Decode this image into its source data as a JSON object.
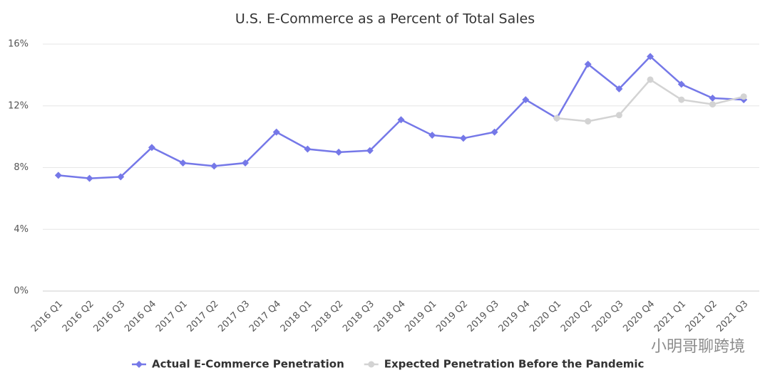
{
  "chart_data": {
    "type": "line",
    "title": "U.S. E-Commerce as a Percent of Total Sales",
    "watermark": "小明哥聊跨境",
    "categories": [
      "2016 Q1",
      "2016 Q2",
      "2016 Q3",
      "2016 Q4",
      "2017 Q1",
      "2017 Q2",
      "2017 Q3",
      "2017 Q4",
      "2018 Q1",
      "2018 Q2",
      "2018 Q3",
      "2018 Q4",
      "2019 Q1",
      "2019 Q2",
      "2019 Q3",
      "2019 Q4",
      "2020 Q1",
      "2020 Q2",
      "2020 Q3",
      "2020 Q4",
      "2021 Q1",
      "2021 Q2",
      "2021 Q3"
    ],
    "series": [
      {
        "name": "Actual E-Commerce Penetration",
        "color": "#7578e8",
        "marker": "diamond",
        "values": [
          7.5,
          7.3,
          7.4,
          9.3,
          8.3,
          8.1,
          8.3,
          10.3,
          9.2,
          9.0,
          9.1,
          11.1,
          10.1,
          9.9,
          10.3,
          12.4,
          11.2,
          14.7,
          13.1,
          15.2,
          13.4,
          12.5,
          12.4
        ]
      },
      {
        "name": "Expected Penetration Before the Pandemic",
        "color": "#d3d3d3",
        "marker": "circle",
        "values": [
          null,
          null,
          null,
          null,
          null,
          null,
          null,
          null,
          null,
          null,
          null,
          null,
          null,
          null,
          null,
          null,
          11.2,
          11.0,
          11.4,
          13.7,
          12.4,
          12.1,
          12.6
        ]
      }
    ],
    "ylim": [
      0,
      16
    ],
    "yticks": [
      {
        "value": 0,
        "label": "0%"
      },
      {
        "value": 4,
        "label": "4%"
      },
      {
        "value": 8,
        "label": "8%"
      },
      {
        "value": 12,
        "label": "12%"
      },
      {
        "value": 16,
        "label": "16%"
      }
    ],
    "grid": true,
    "legend": "bottom"
  }
}
